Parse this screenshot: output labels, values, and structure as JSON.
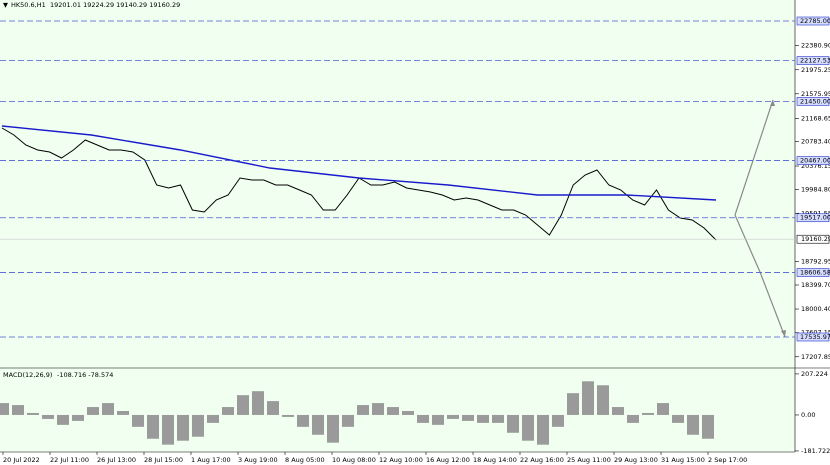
{
  "chart_data": [
    {
      "type": "line",
      "title": "HK50.6,H1",
      "subtitle": "19201.01 19224.29 19140.29 19160.29",
      "x_labels": [
        "20 Jul 2022",
        "22 Jul 11:00",
        "26 Jul 13:00",
        "28 Jul 15:00",
        "1 Aug 17:00",
        "3 Aug 19:00",
        "8 Aug 05:00",
        "10 Aug 08:00",
        "12 Aug 10:00",
        "16 Aug 12:00",
        "18 Aug 14:00",
        "22 Aug 16:00",
        "25 Aug 11:00",
        "29 Aug 13:00",
        "31 Aug 15:00",
        "2 Sep 17:00"
      ],
      "series": [
        {
          "color": "#000000",
          "values": [
            21008,
            20891,
            20725,
            20642,
            20609,
            20509,
            20642,
            20808,
            20725,
            20642,
            20642,
            20609,
            20476,
            20061,
            20011,
            20061,
            19646,
            19613,
            19812,
            19895,
            20177,
            20144,
            20144,
            20061,
            20061,
            19978,
            19895,
            19646,
            19646,
            19895,
            20177,
            20061,
            20061,
            20111,
            20011,
            19978,
            19945,
            19895,
            19812,
            19845,
            19812,
            19729,
            19646,
            19646,
            19563,
            19397,
            19231,
            19563,
            20061,
            20227,
            20310,
            20061,
            19978,
            19812,
            19729,
            19978,
            19646,
            19513,
            19480,
            19347,
            19148
          ]
        },
        {
          "color": "#1a1acc",
          "values": [
            21041,
            20891,
            20642,
            20343,
            20177,
            20061,
            19895,
            19895,
            19812
          ]
        }
      ],
      "ylim": [
        17021,
        23134
      ],
      "yticks": [
        {
          "value": 22380.9,
          "label": "22380.90"
        },
        21975.25,
        21575.95,
        21168.65,
        {
          "value": 20783.4,
          "label": "20783.40"
        },
        20376.15,
        {
          "value": 19984.8,
          "label": "19984.80"
        },
        19591.55,
        18792.95,
        {
          "value": 18399.7,
          "label": "18399.70"
        },
        {
          "value": 18000.4,
          "label": "18000.40"
        },
        17607.15,
        17207.85
      ],
      "levels": [
        {
          "value": 22785,
          "label": "22785.00"
        },
        {
          "value": 22127.53,
          "label": "22127.53"
        },
        {
          "value": 21450,
          "label": "21450.00"
        },
        {
          "value": 20467,
          "label": "20467.00"
        },
        {
          "value": 19517,
          "label": "19517.00"
        },
        {
          "value": 18606.58,
          "label": "18606.58"
        },
        {
          "value": 17535.97,
          "label": "17535.97"
        }
      ],
      "current_price": 19160.29
    },
    {
      "type": "bar",
      "title": "MACD(12,26,9)",
      "subtitle": "-108.716 -78.574",
      "color": "#9a9a9a",
      "values": [
        60,
        50,
        10,
        -20,
        -50,
        -30,
        40,
        60,
        20,
        -60,
        -120,
        -150,
        -130,
        -110,
        -40,
        40,
        100,
        120,
        70,
        -10,
        -60,
        -100,
        -140,
        -60,
        50,
        60,
        40,
        20,
        -40,
        -50,
        -20,
        -30,
        -40,
        -40,
        -90,
        -130,
        -150,
        -60,
        110,
        170,
        150,
        40,
        -40,
        10,
        60,
        -40,
        -100,
        -120
      ],
      "ylim": [
        -187,
        227
      ],
      "yticks": [
        207.224,
        {
          "value": 0,
          "label": "0.00"
        },
        -181.722
      ]
    }
  ]
}
